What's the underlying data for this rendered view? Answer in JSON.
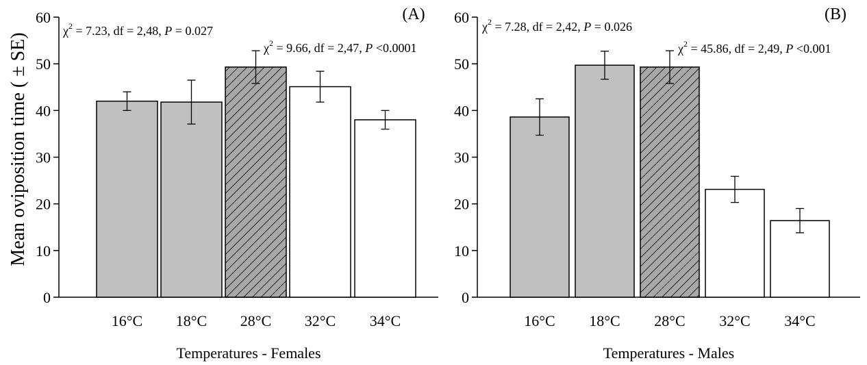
{
  "ylabel": "Mean oviposition time ( ± SE)",
  "chart_data": [
    {
      "type": "bar",
      "panel_label": "(A)",
      "xlabel": "Temperatures - Females",
      "ylabel": "Mean oviposition time ( ± SE)",
      "ylim": [
        0,
        60
      ],
      "yticks": [
        0,
        10,
        20,
        30,
        40,
        50,
        60
      ],
      "categories": [
        "16°C",
        "18°C",
        "28°C",
        "32°C",
        "34°C"
      ],
      "values": [
        42.0,
        41.8,
        49.3,
        45.1,
        38.0
      ],
      "errors": [
        2.0,
        4.7,
        3.5,
        3.3,
        2.0
      ],
      "bar_styles": [
        "gray",
        "gray",
        "hatched",
        "white",
        "white"
      ],
      "annotations": [
        {
          "chi": "χ",
          "sup": "2",
          "text": " = 7.23, df = 2,48, ",
          "p": "P",
          "rest": " = 0.027"
        },
        {
          "chi": "χ",
          "sup": "2",
          "text": " = 9.66, df = 2,47, ",
          "p": "P",
          "rest": " <0.0001"
        }
      ]
    },
    {
      "type": "bar",
      "panel_label": "(B)",
      "xlabel": "Temperatures - Males",
      "ylim": [
        0,
        60
      ],
      "yticks": [
        0,
        10,
        20,
        30,
        40,
        50,
        60
      ],
      "categories": [
        "16°C",
        "18°C",
        "28°C",
        "32°C",
        "34°C"
      ],
      "values": [
        38.6,
        49.7,
        49.3,
        23.1,
        16.4
      ],
      "errors": [
        3.9,
        3.0,
        3.5,
        2.8,
        2.6
      ],
      "bar_styles": [
        "gray",
        "gray",
        "hatched",
        "white",
        "white"
      ],
      "annotations": [
        {
          "chi": "χ",
          "sup": "2",
          "text": " = 7.28, df = 2,42, ",
          "p": "P",
          "rest": " = 0.026"
        },
        {
          "chi": "χ",
          "sup": "2",
          "text": " = 45.86, df = 2,49, ",
          "p": "P",
          "rest": " <0.001"
        }
      ]
    }
  ],
  "colors": {
    "gray_bar": "#c0c0c0",
    "hatched_bar": "#a8a8a8",
    "white_bar": "#ffffff",
    "ink": "#000000"
  }
}
